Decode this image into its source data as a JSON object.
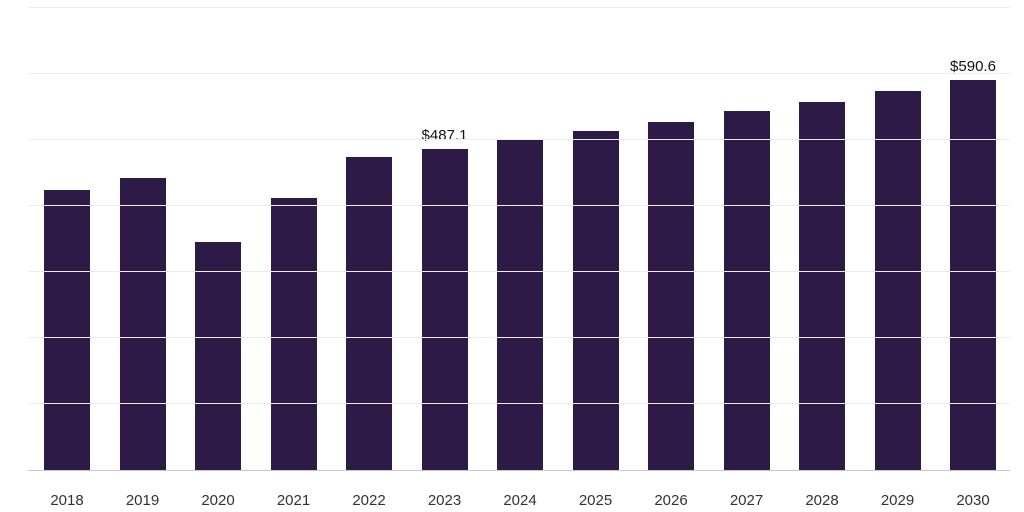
{
  "chart_data": {
    "type": "bar",
    "title": "",
    "xlabel": "",
    "ylabel": "",
    "categories": [
      "2018",
      "2019",
      "2020",
      "2021",
      "2022",
      "2023",
      "2024",
      "2025",
      "2026",
      "2027",
      "2028",
      "2029",
      "2030"
    ],
    "values": [
      424,
      443,
      346,
      412,
      474,
      487.1,
      501,
      514,
      528,
      544,
      558,
      575,
      590.6
    ],
    "point_labels": [
      null,
      null,
      null,
      null,
      null,
      "$487.1",
      null,
      null,
      null,
      null,
      null,
      null,
      "$590.6"
    ],
    "ylim": [
      0,
      700
    ],
    "gridline_step": 100,
    "grid": "horizontal",
    "legend": "none",
    "y_tick_labels_visible": false,
    "bar_color": "#2e1a47",
    "axis_line_color": "#c9c9c9",
    "gridline_color": "#ededed",
    "data_label_color": "#111111",
    "tick_label_color": "#333333"
  }
}
